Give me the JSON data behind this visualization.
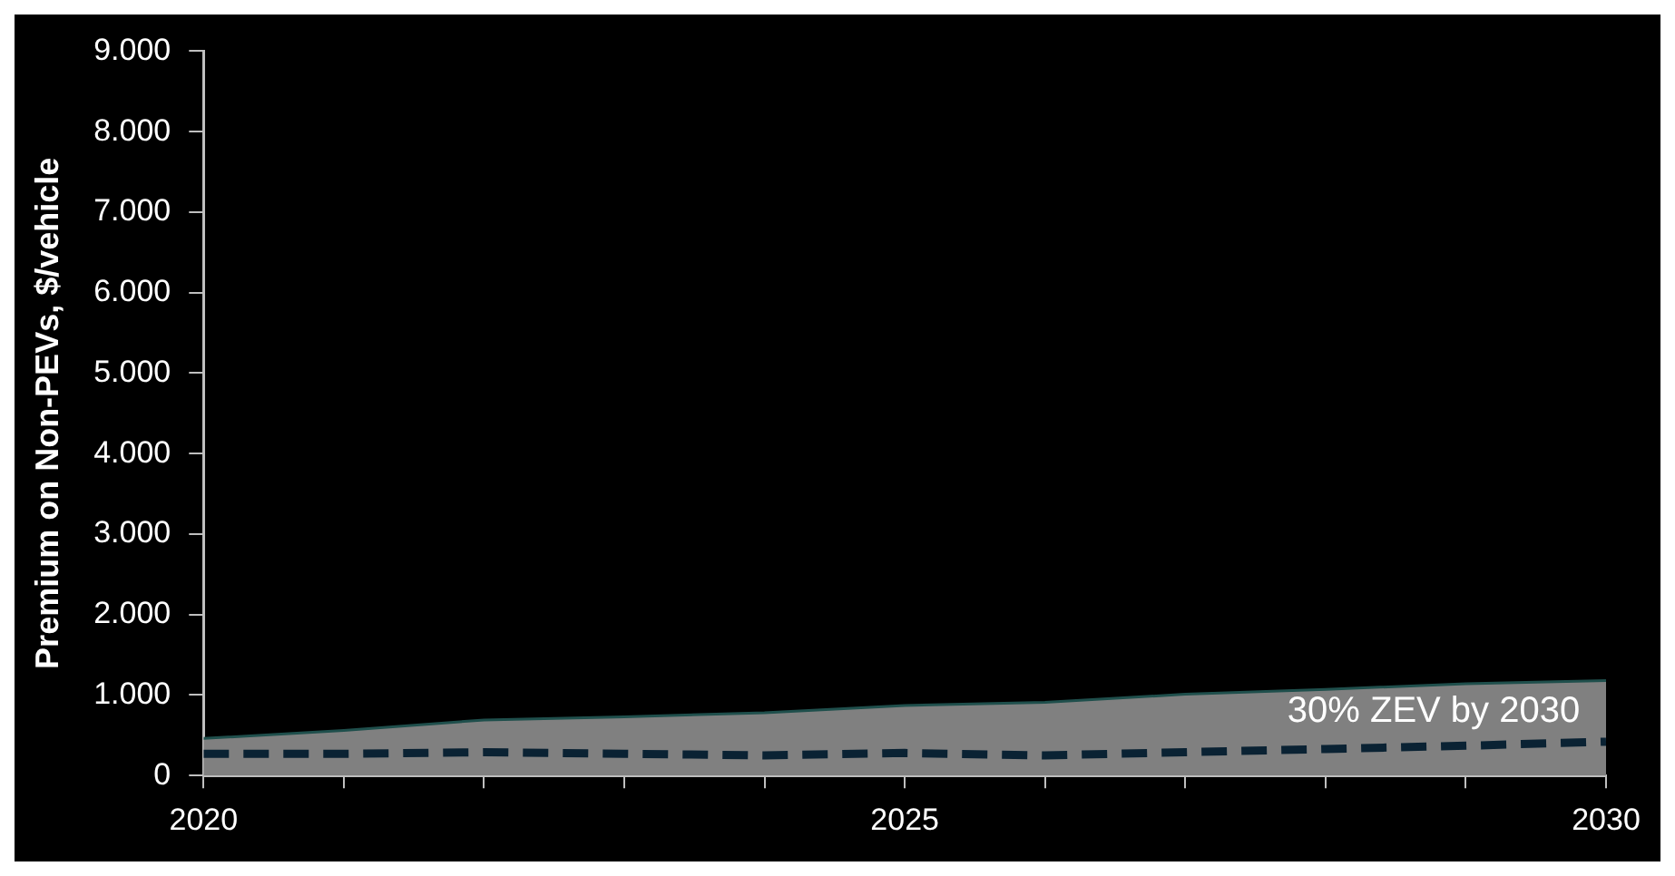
{
  "chart_data": {
    "type": "line",
    "ylabel": "Premium on Non-PEVs, $/vehicle",
    "x": [
      2020,
      2021,
      2022,
      2023,
      2024,
      2025,
      2026,
      2027,
      2028,
      2029,
      2030
    ],
    "series": [
      {
        "type": "area",
        "color": "#808080",
        "values": [
          460,
          560,
          690,
          730,
          780,
          870,
          910,
          1010,
          1070,
          1140,
          1180
        ]
      },
      {
        "type": "line",
        "color": "#0a2233",
        "line_style": "dashed",
        "values": [
          270,
          270,
          290,
          270,
          250,
          280,
          250,
          290,
          330,
          370,
          420
        ]
      }
    ],
    "xlim": [
      2020,
      2030
    ],
    "xticks": [
      2020,
      {
        "value": 2021,
        "label": null
      },
      {
        "value": 2022,
        "label": null
      },
      {
        "value": 2023,
        "label": null
      },
      {
        "value": 2024,
        "label": null
      },
      2025,
      {
        "value": 2026,
        "label": null
      },
      {
        "value": 2027,
        "label": null
      },
      {
        "value": 2028,
        "label": null
      },
      {
        "value": 2029,
        "label": null
      },
      2030
    ],
    "ylim": [
      0,
      9000
    ],
    "yticks": [
      0,
      {
        "value": 1000,
        "label": "1.000"
      },
      {
        "value": 2000,
        "label": "2.000"
      },
      {
        "value": 3000,
        "label": "3.000"
      },
      {
        "value": 4000,
        "label": "4.000"
      },
      {
        "value": 5000,
        "label": "5.000"
      },
      {
        "value": 6000,
        "label": "6.000"
      },
      {
        "value": 7000,
        "label": "7.000"
      },
      {
        "value": 8000,
        "label": "8.000"
      },
      {
        "value": 9000,
        "label": "9.000"
      }
    ],
    "annotations": [
      "30% ZEV by 2030"
    ],
    "grid": false,
    "legend": false,
    "marker": "none"
  }
}
